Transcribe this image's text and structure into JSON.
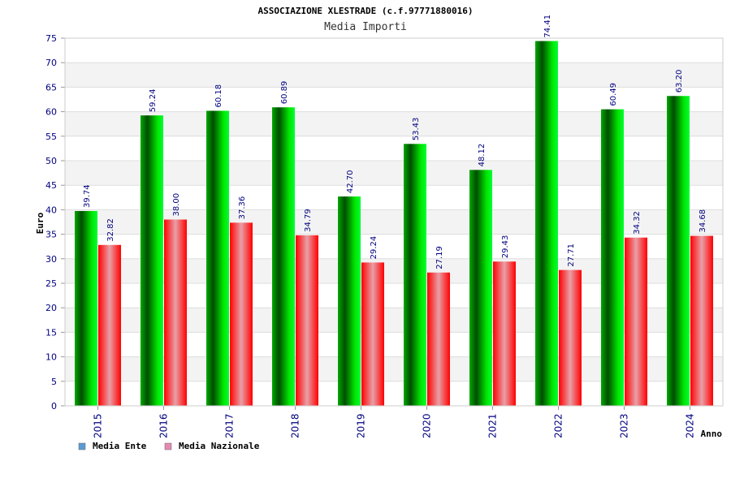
{
  "chart_data": {
    "type": "bar",
    "title": "ASSOCIAZIONE XLESTRADE (c.f.97771880016)",
    "subtitle": "Media Importi",
    "xlabel": "Anno",
    "ylabel": "Euro",
    "ylim": [
      0,
      75
    ],
    "ytick_step": 5,
    "grid": true,
    "legend_position": "bottom-left",
    "categories": [
      "2015",
      "2016",
      "2017",
      "2018",
      "2019",
      "2020",
      "2021",
      "2022",
      "2023",
      "2024"
    ],
    "series": [
      {
        "name": "Media Ente",
        "color": "#00cc00",
        "legend_color": "#5b9bd5",
        "values": [
          39.74,
          59.24,
          60.18,
          60.89,
          42.7,
          53.43,
          48.12,
          74.41,
          60.49,
          63.2
        ],
        "labels": [
          "39.74",
          "59.24",
          "60.18",
          "60.89",
          "42.70",
          "53.43",
          "48.12",
          "74.41",
          "60.49",
          "63.20"
        ]
      },
      {
        "name": "Media Nazionale",
        "color": "#ee0000",
        "legend_color": "#e58ab4",
        "values": [
          32.82,
          38.0,
          37.36,
          34.79,
          29.24,
          27.19,
          29.43,
          27.71,
          34.32,
          34.68
        ],
        "labels": [
          "32.82",
          "38.00",
          "37.36",
          "34.79",
          "29.24",
          "27.19",
          "29.43",
          "27.71",
          "34.32",
          "34.68"
        ]
      }
    ]
  }
}
